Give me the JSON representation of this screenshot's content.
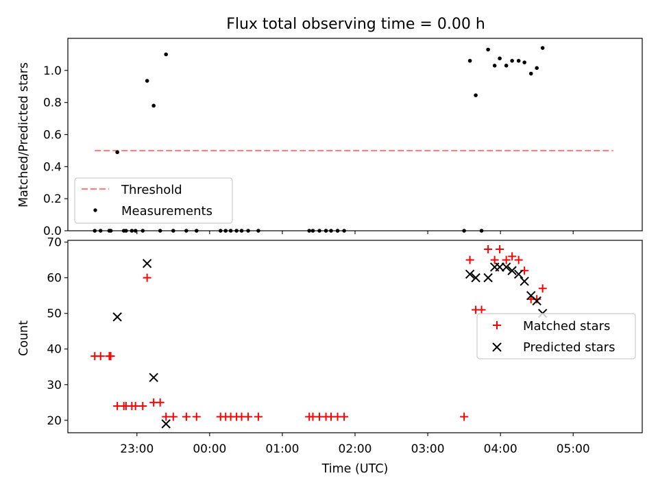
{
  "chart_data": [
    {
      "type": "scatter",
      "title": "Flux total observing time = 0.00 h",
      "xlabel": "",
      "ylabel": "Matched/Predicted stars",
      "xlim": [
        -0.95,
        6.95
      ],
      "ylim": [
        0.0,
        1.2
      ],
      "yticks": [
        0.0,
        0.2,
        0.4,
        0.6,
        0.8,
        1.0
      ],
      "ytick_labels": [
        "0.0",
        "0.2",
        "0.4",
        "0.6",
        "0.8",
        "1.0"
      ],
      "legend_position": "lower-left",
      "threshold": {
        "name": "Threshold",
        "color": "#ff7f7f",
        "y": 0.5,
        "x_start": -0.58,
        "x_end": 6.55
      },
      "series": [
        {
          "name": "Measurements",
          "color": "#000000",
          "points": [
            [
              -0.58,
              0.0
            ],
            [
              -0.5,
              0.0
            ],
            [
              -0.38,
              0.0
            ],
            [
              -0.36,
              0.0
            ],
            [
              -0.27,
              0.49
            ],
            [
              -0.18,
              0.0
            ],
            [
              -0.15,
              0.0
            ],
            [
              -0.07,
              0.0
            ],
            [
              -0.02,
              0.0
            ],
            [
              0.08,
              0.0
            ],
            [
              0.14,
              0.935
            ],
            [
              0.23,
              0.78
            ],
            [
              0.32,
              0.0
            ],
            [
              0.4,
              1.1
            ],
            [
              0.5,
              0.0
            ],
            [
              0.68,
              0.0
            ],
            [
              0.82,
              0.0
            ],
            [
              1.15,
              0.0
            ],
            [
              1.22,
              0.0
            ],
            [
              1.29,
              0.0
            ],
            [
              1.37,
              0.0
            ],
            [
              1.44,
              0.0
            ],
            [
              1.53,
              0.0
            ],
            [
              1.67,
              0.0
            ],
            [
              2.37,
              0.0
            ],
            [
              2.42,
              0.0
            ],
            [
              2.51,
              0.0
            ],
            [
              2.6,
              0.0
            ],
            [
              2.67,
              0.0
            ],
            [
              2.76,
              0.0
            ],
            [
              2.85,
              0.0
            ],
            [
              4.5,
              0.0
            ],
            [
              4.58,
              1.06
            ],
            [
              4.66,
              0.845
            ],
            [
              4.74,
              0.0
            ],
            [
              4.83,
              1.13
            ],
            [
              4.92,
              1.03
            ],
            [
              4.99,
              1.075
            ],
            [
              5.08,
              1.03
            ],
            [
              5.16,
              1.06
            ],
            [
              5.25,
              1.06
            ],
            [
              5.33,
              1.05
            ],
            [
              5.42,
              0.98
            ],
            [
              5.5,
              1.015
            ],
            [
              5.58,
              1.14
            ]
          ]
        }
      ]
    },
    {
      "type": "scatter",
      "title": "",
      "xlabel": "Time (UTC)",
      "ylabel": "Count",
      "xlim": [
        -0.95,
        6.95
      ],
      "ylim": [
        16.5,
        70.5
      ],
      "xticks": [
        0,
        1,
        2,
        3,
        4,
        5,
        6
      ],
      "xtick_labels": [
        "23:00",
        "00:00",
        "01:00",
        "02:00",
        "03:00",
        "04:00",
        "05:00"
      ],
      "yticks": [
        20,
        30,
        40,
        50,
        60,
        70
      ],
      "ytick_labels": [
        "20",
        "30",
        "40",
        "50",
        "60",
        "70"
      ],
      "legend_position": "center-right",
      "series": [
        {
          "name": "Matched stars",
          "color": "#ff0000",
          "marker": "+",
          "points": [
            [
              -0.58,
              38
            ],
            [
              -0.5,
              38
            ],
            [
              -0.38,
              38
            ],
            [
              -0.36,
              38
            ],
            [
              -0.27,
              24
            ],
            [
              -0.18,
              24
            ],
            [
              -0.15,
              24
            ],
            [
              -0.07,
              24
            ],
            [
              -0.02,
              24
            ],
            [
              0.08,
              24
            ],
            [
              0.14,
              60
            ],
            [
              0.23,
              25
            ],
            [
              0.32,
              25
            ],
            [
              0.4,
              21
            ],
            [
              0.5,
              21
            ],
            [
              0.68,
              21
            ],
            [
              0.82,
              21
            ],
            [
              1.15,
              21
            ],
            [
              1.22,
              21
            ],
            [
              1.29,
              21
            ],
            [
              1.37,
              21
            ],
            [
              1.44,
              21
            ],
            [
              1.53,
              21
            ],
            [
              1.67,
              21
            ],
            [
              2.37,
              21
            ],
            [
              2.42,
              21
            ],
            [
              2.51,
              21
            ],
            [
              2.6,
              21
            ],
            [
              2.67,
              21
            ],
            [
              2.76,
              21
            ],
            [
              2.85,
              21
            ],
            [
              4.5,
              21
            ],
            [
              4.58,
              65
            ],
            [
              4.66,
              51
            ],
            [
              4.74,
              51
            ],
            [
              4.83,
              68
            ],
            [
              4.92,
              65
            ],
            [
              4.99,
              68
            ],
            [
              5.08,
              65
            ],
            [
              5.16,
              66
            ],
            [
              5.25,
              65
            ],
            [
              5.33,
              62
            ],
            [
              5.42,
              54
            ],
            [
              5.5,
              54
            ],
            [
              5.58,
              57
            ]
          ]
        },
        {
          "name": "Predicted stars",
          "color": "#000000",
          "marker": "x",
          "points": [
            [
              -0.27,
              49
            ],
            [
              0.14,
              64
            ],
            [
              0.23,
              32
            ],
            [
              0.4,
              19
            ],
            [
              4.58,
              61
            ],
            [
              4.66,
              60
            ],
            [
              4.83,
              60
            ],
            [
              4.92,
              63
            ],
            [
              4.99,
              63
            ],
            [
              5.08,
              63
            ],
            [
              5.16,
              62
            ],
            [
              5.25,
              61
            ],
            [
              5.33,
              59
            ],
            [
              5.42,
              55
            ],
            [
              5.5,
              53.5
            ],
            [
              5.58,
              50
            ]
          ]
        }
      ]
    }
  ]
}
